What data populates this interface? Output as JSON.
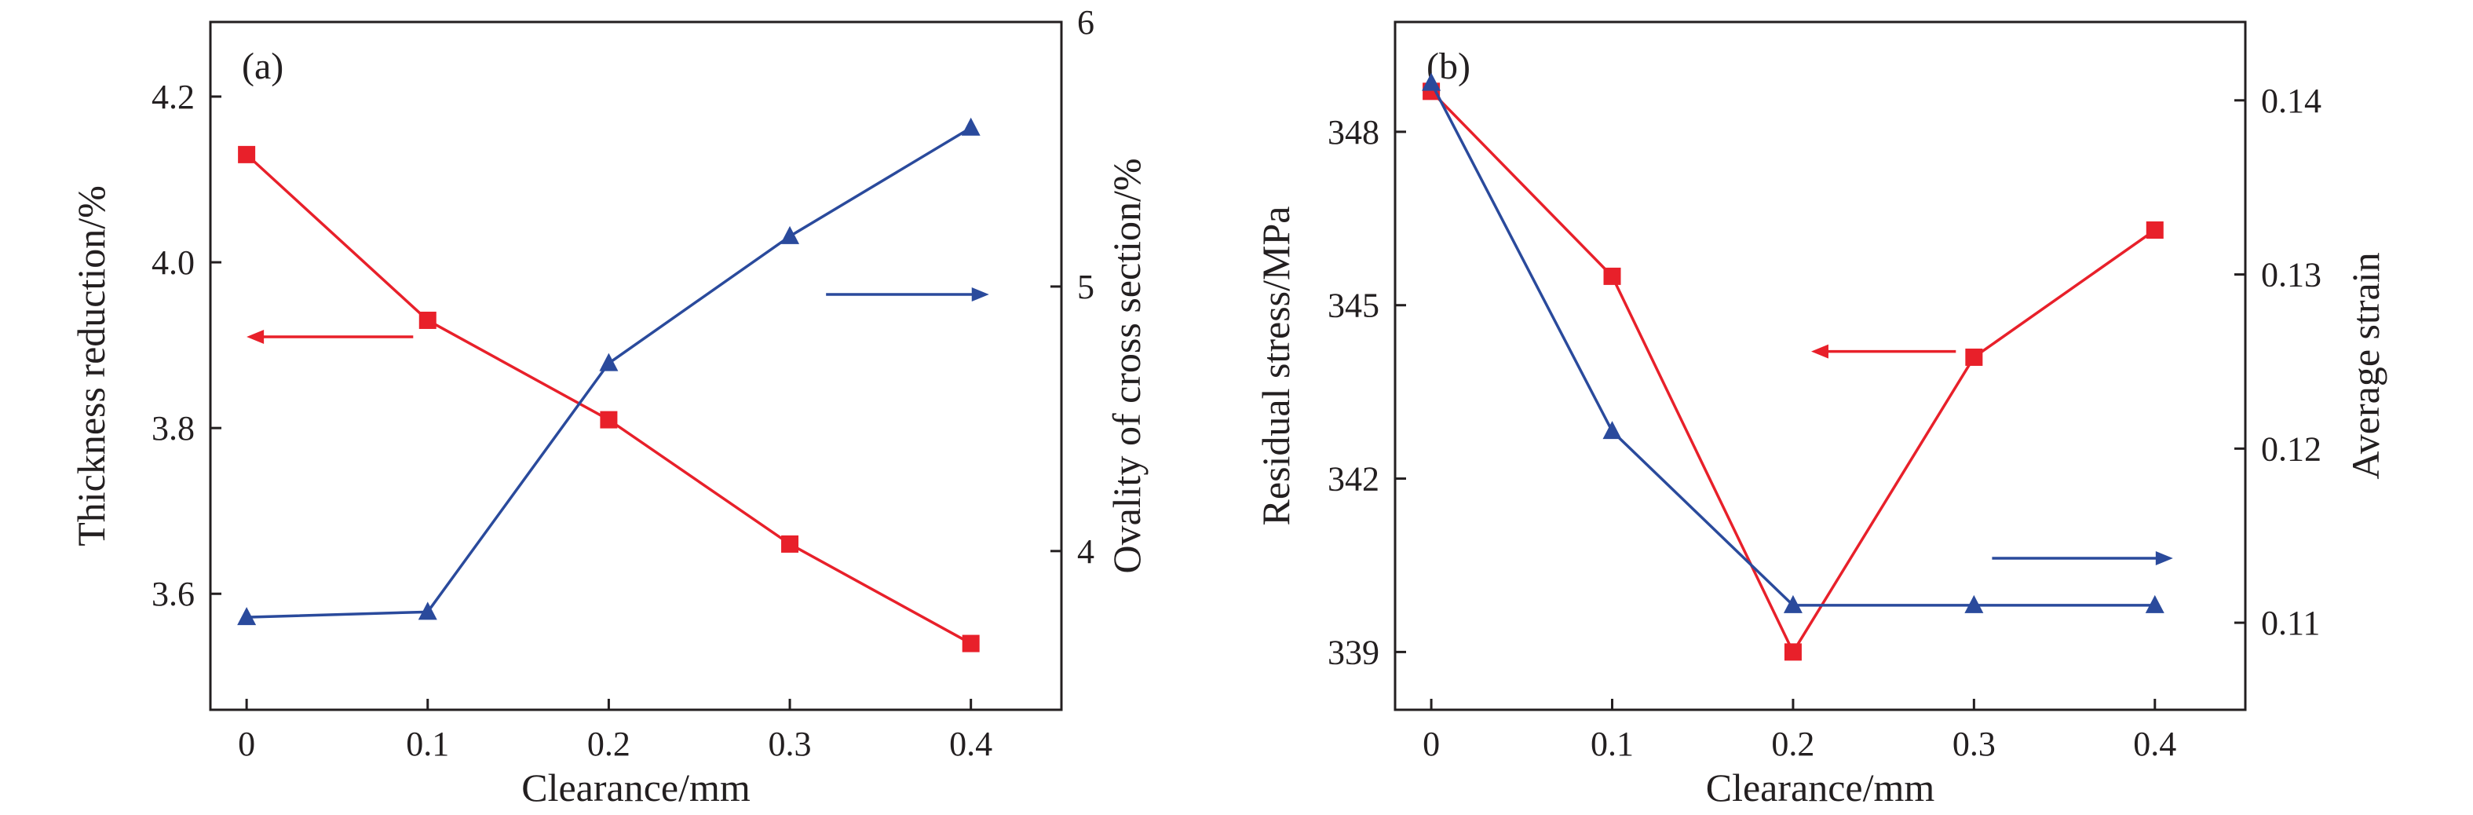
{
  "chart_data": [
    {
      "type": "line",
      "panel_label": "(a)",
      "xlabel": "Clearance/mm",
      "x": [
        0,
        0.1,
        0.2,
        0.3,
        0.4
      ],
      "x_ticks": [
        "0",
        "0.1",
        "0.2",
        "0.3",
        "0.4"
      ],
      "xlim": [
        -0.02,
        0.45
      ],
      "y_left": {
        "label": "Thickness reduction/%",
        "lim": [
          3.46,
          4.29
        ],
        "ticks": [
          "3.6",
          "3.8",
          "4.0",
          "4.2"
        ],
        "tick_values": [
          3.6,
          3.8,
          4.0,
          4.2
        ]
      },
      "y_right": {
        "label": "Ovality of cross section/%",
        "lim": [
          3.4,
          6.0
        ],
        "ticks": [
          "4",
          "5",
          "6"
        ],
        "tick_values": [
          4,
          5,
          6
        ]
      },
      "series": [
        {
          "axis": "left",
          "marker": "square",
          "color": "#e8202a",
          "values": [
            4.13,
            3.93,
            3.81,
            3.66,
            3.54
          ]
        },
        {
          "axis": "right",
          "marker": "triangle",
          "color": "#2a4a9c",
          "values": [
            3.75,
            3.77,
            4.71,
            5.19,
            5.6
          ]
        }
      ],
      "arrows": [
        {
          "series": 0,
          "direction": "left",
          "x_from": 0.092,
          "x_to": 0.0,
          "y": 3.91,
          "axis": "left"
        },
        {
          "series": 1,
          "direction": "right",
          "x_from": 0.32,
          "x_to": 0.41,
          "y": 4.97,
          "axis": "right"
        }
      ],
      "grid": false
    },
    {
      "type": "line",
      "panel_label": "(b)",
      "xlabel": "Clearance/mm",
      "x": [
        0,
        0.1,
        0.2,
        0.3,
        0.4
      ],
      "x_ticks": [
        "0",
        "0.1",
        "0.2",
        "0.3",
        "0.4"
      ],
      "xlim": [
        -0.02,
        0.45
      ],
      "y_left": {
        "label": "Residual stress/MPa",
        "lim": [
          338.0,
          349.9
        ],
        "ticks": [
          "339",
          "342",
          "345",
          "348"
        ],
        "tick_values": [
          339,
          342,
          345,
          348
        ]
      },
      "y_right": {
        "label": "Average strain",
        "lim": [
          0.105,
          0.1445
        ],
        "ticks": [
          "0.11",
          "0.12",
          "0.13",
          "0.14"
        ],
        "tick_values": [
          0.11,
          0.12,
          0.13,
          0.14
        ]
      },
      "series": [
        {
          "axis": "left",
          "marker": "square",
          "color": "#e8202a",
          "values": [
            348.7,
            345.5,
            339.0,
            344.1,
            346.3
          ]
        },
        {
          "axis": "right",
          "marker": "triangle",
          "color": "#2a4a9c",
          "values": [
            0.141,
            0.121,
            0.111,
            0.111,
            0.111
          ]
        }
      ],
      "arrows": [
        {
          "series": 0,
          "direction": "left",
          "x_from": 0.29,
          "x_to": 0.21,
          "y": 344.2,
          "axis": "left"
        },
        {
          "series": 1,
          "direction": "right",
          "x_from": 0.31,
          "x_to": 0.41,
          "y": 0.1137,
          "axis": "right"
        }
      ],
      "grid": false
    }
  ]
}
